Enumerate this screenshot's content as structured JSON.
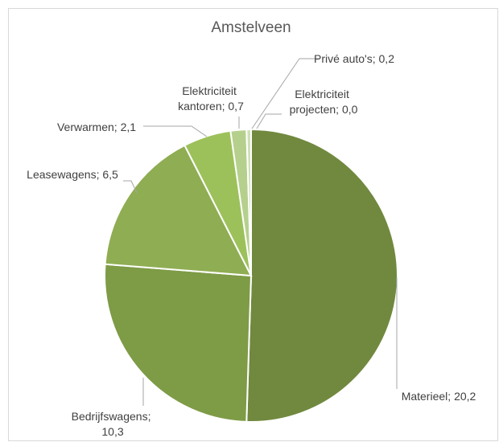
{
  "chart_data": {
    "type": "pie",
    "title": "Amstelveen",
    "categories": [
      "Materieel",
      "Bedrijfswagens",
      "Leasewagens",
      "Verwarmen",
      "Elektriciteit kantoren",
      "Privé auto's",
      "Elektriciteit projecten"
    ],
    "values": [
      20.2,
      10.3,
      6.5,
      2.1,
      0.7,
      0.2,
      0.0
    ],
    "value_labels": [
      "20,2",
      "10,3",
      "6,5",
      "2,1",
      "0,7",
      "0,2",
      "0,0"
    ],
    "label_separator": "; ",
    "colors": [
      "#70893e",
      "#7e9b46",
      "#8fad52",
      "#9cc15a",
      "#b5d08d",
      "#cfe0b6",
      "#e3edd6"
    ]
  }
}
